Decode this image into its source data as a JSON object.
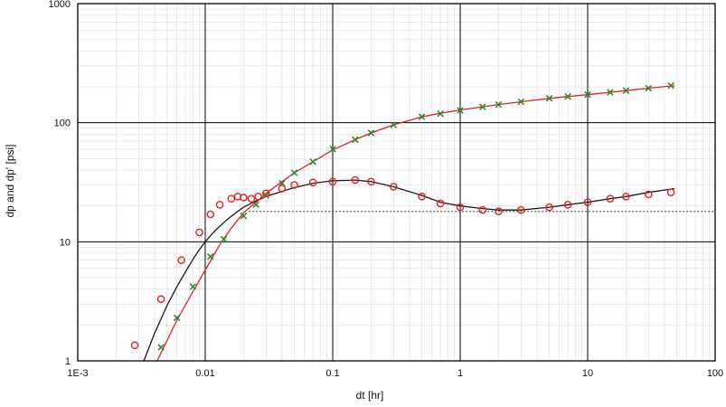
{
  "chart_data": {
    "type": "scatter",
    "xlabel": "dt [hr]",
    "ylabel": "dp and dp'  [psi]",
    "x_scale": "log",
    "y_scale": "log",
    "xlim": [
      0.001,
      100
    ],
    "ylim": [
      1,
      1000
    ],
    "grid": true,
    "x_ticks": [
      {
        "value": 0.001,
        "label": "1E-3"
      },
      {
        "value": 0.01,
        "label": "0.01"
      },
      {
        "value": 0.1,
        "label": "0.1"
      },
      {
        "value": 1,
        "label": "1"
      },
      {
        "value": 10,
        "label": "10"
      },
      {
        "value": 100,
        "label": "100"
      }
    ],
    "y_ticks": [
      {
        "value": 1,
        "label": "1"
      },
      {
        "value": 10,
        "label": "10"
      },
      {
        "value": 100,
        "label": "100"
      },
      {
        "value": 1000,
        "label": "1000"
      }
    ],
    "series": [
      {
        "kind": "markers",
        "marker": "x",
        "color": "#2e8b2e",
        "x": [
          0.0045,
          0.006,
          0.008,
          0.011,
          0.014,
          0.02,
          0.025,
          0.03,
          0.04,
          0.05,
          0.07,
          0.1,
          0.15,
          0.2,
          0.3,
          0.5,
          0.7,
          1,
          1.5,
          2,
          3,
          5,
          7,
          10,
          15,
          20,
          30,
          45
        ],
        "y": [
          1.3,
          2.3,
          4.2,
          7.5,
          10.5,
          16.5,
          20.5,
          24.5,
          31,
          38,
          47,
          60,
          72,
          82,
          96,
          112,
          119,
          127,
          136,
          142,
          150,
          160,
          166,
          172,
          180,
          186,
          195,
          205
        ]
      },
      {
        "kind": "markers",
        "marker": "circle",
        "color": "#e82020",
        "x": [
          0.0028,
          0.0045,
          0.0065,
          0.009,
          0.011,
          0.013,
          0.016,
          0.018,
          0.02,
          0.023,
          0.026,
          0.03,
          0.04,
          0.05,
          0.07,
          0.1,
          0.15,
          0.2,
          0.3,
          0.5,
          0.7,
          1,
          1.5,
          2,
          3,
          5,
          7,
          10,
          15,
          20,
          30,
          45
        ],
        "y": [
          1.35,
          3.3,
          7,
          12,
          17,
          20.5,
          23,
          24,
          23.5,
          23,
          24,
          25.5,
          28,
          30,
          31.5,
          32,
          33,
          32,
          29,
          24,
          21,
          19.5,
          18.5,
          18,
          18.5,
          19.5,
          20.5,
          21.5,
          23,
          24,
          25,
          26
        ]
      },
      {
        "kind": "line",
        "color": "#e82020",
        "width": 1.3,
        "x": [
          0.0042,
          0.006,
          0.008,
          0.01,
          0.013,
          0.016,
          0.02,
          0.025,
          0.03,
          0.04,
          0.05,
          0.07,
          0.1,
          0.15,
          0.2,
          0.3,
          0.5,
          0.7,
          1,
          1.5,
          2,
          3,
          5,
          7,
          10,
          20,
          30,
          48
        ],
        "y": [
          1,
          2.2,
          3.8,
          5.8,
          9.5,
          13,
          17.5,
          21.5,
          25.5,
          32,
          38,
          47,
          59,
          72,
          82,
          96,
          112,
          120,
          128,
          136,
          142,
          150,
          160,
          166,
          172,
          186,
          195,
          205
        ]
      },
      {
        "kind": "line",
        "color": "#1a1a1a",
        "width": 1.3,
        "x": [
          0.0033,
          0.004,
          0.005,
          0.006,
          0.007,
          0.008,
          0.009,
          0.01,
          0.012,
          0.015,
          0.018,
          0.02,
          0.025,
          0.03,
          0.04,
          0.05,
          0.07,
          0.1,
          0.15,
          0.2,
          0.3,
          0.5,
          0.7,
          1,
          1.5,
          2,
          3,
          5,
          7,
          10,
          15,
          20,
          30,
          48
        ],
        "y": [
          1,
          1.7,
          2.9,
          4.2,
          5.6,
          7.1,
          8.6,
          10,
          12.5,
          15.5,
          18,
          19.5,
          22,
          24,
          26.5,
          28.5,
          31,
          32.5,
          33,
          32,
          29,
          24.5,
          21.5,
          20,
          19,
          18.5,
          18.5,
          19.5,
          20.5,
          21.5,
          23,
          24,
          26,
          28
        ]
      },
      {
        "kind": "line",
        "style": "dotted",
        "color": "#333333",
        "width": 1,
        "x": [
          0.022,
          100
        ],
        "y": [
          18,
          18
        ]
      }
    ]
  }
}
